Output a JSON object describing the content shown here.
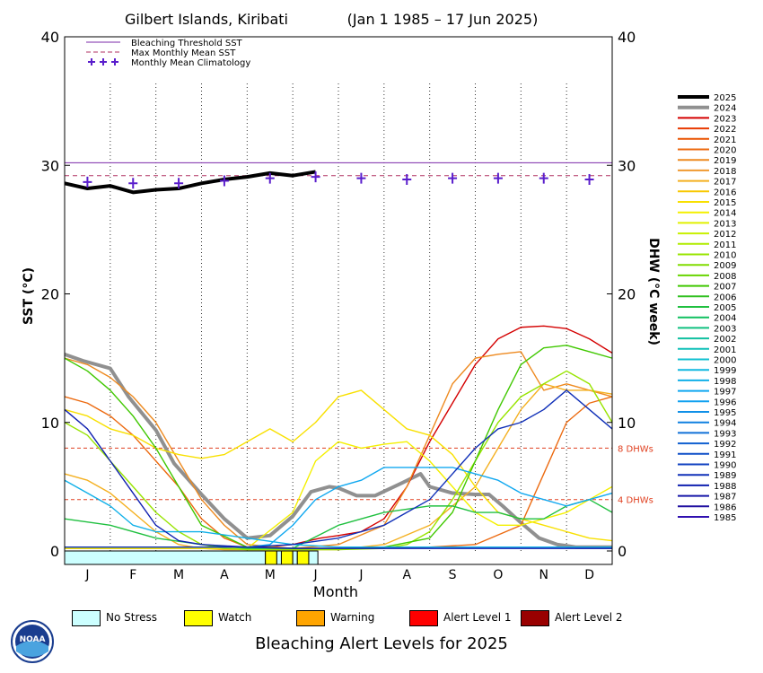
{
  "chart_data": {
    "type": "line",
    "title": "Gilbert Islands, Kiribati",
    "date_range": "(Jan 1 1985 – 17 Jun 2025)",
    "xlabel": "Month",
    "ylabel_left": "SST (°C)",
    "ylabel_right": "DHW (°C week)",
    "ylim": [
      0,
      40
    ],
    "y_ticks": [
      0,
      10,
      20,
      30,
      40
    ],
    "dhw_ylim": [
      0,
      40
    ],
    "months": [
      "J",
      "F",
      "M",
      "A",
      "M",
      "J",
      "J",
      "A",
      "S",
      "O",
      "N",
      "D"
    ],
    "reference_lines": {
      "bleaching_threshold": 30.2,
      "max_monthly_mean": 29.2,
      "dhw_thresholds": [
        {
          "value": 8,
          "label": "8 DHWs"
        },
        {
          "value": 4,
          "label": "4 DHWs"
        }
      ]
    },
    "legend_top": [
      {
        "name": "Bleaching Threshold SST",
        "color": "#7b2aa8"
      },
      {
        "name": "Max Monthly Mean SST",
        "color": "#b03060"
      },
      {
        "name": "Monthly Mean Climatology",
        "color": "#5a1ecc"
      }
    ],
    "climatology": {
      "x": [
        0.5,
        1.5,
        2.5,
        3.5,
        4.5,
        5.5,
        6.5,
        7.5,
        8.5,
        9.5,
        10.5,
        11.5
      ],
      "y": [
        28.7,
        28.6,
        28.6,
        28.8,
        29.0,
        29.1,
        29.0,
        28.9,
        29.0,
        29.0,
        29.0,
        28.9
      ]
    },
    "series": [
      {
        "name": "2025",
        "color": "#000000",
        "sst_x": [
          0.0,
          0.5,
          1.0,
          1.5,
          2.0,
          2.5,
          3.0,
          3.5,
          4.0,
          4.5,
          5.0,
          5.5
        ],
        "sst_y": [
          28.6,
          28.2,
          28.4,
          27.9,
          28.1,
          28.2,
          28.6,
          28.9,
          29.1,
          29.4,
          29.2,
          29.5
        ]
      },
      {
        "name": "2024",
        "color": "#909090",
        "dhw_x": [
          0,
          0.4,
          1.0,
          1.4,
          2.0,
          2.4,
          3.0,
          3.5,
          4.0,
          4.5,
          5.0,
          5.4,
          5.8,
          6.0,
          6.4,
          6.8,
          7.4,
          7.8,
          8.0,
          8.5,
          9.0,
          9.3,
          9.6,
          10.0,
          10.4,
          10.8,
          11.2,
          12.0
        ],
        "dhw_y": [
          15.3,
          14.8,
          14.2,
          12.0,
          9.4,
          6.8,
          4.4,
          2.5,
          1.0,
          1.2,
          2.7,
          4.6,
          5.0,
          4.9,
          4.3,
          4.3,
          5.3,
          6.0,
          5.0,
          4.5,
          4.4,
          4.4,
          3.5,
          2.2,
          1.0,
          0.5,
          0.3,
          0.3
        ]
      },
      {
        "name": "2023",
        "color": "#d40000",
        "dhw_x": [
          0,
          2,
          4,
          5,
          5.6,
          6.0,
          6.5,
          7.0,
          7.5,
          8.0,
          8.5,
          9.0,
          9.5,
          10.0,
          10.5,
          11.0,
          11.5,
          12.0
        ],
        "dhw_y": [
          0.2,
          0.2,
          0.2,
          0.5,
          1.0,
          1.2,
          1.5,
          2.5,
          5.0,
          8.5,
          11.5,
          14.5,
          16.5,
          17.4,
          17.5,
          17.3,
          16.5,
          15.4
        ]
      },
      {
        "name": "2022",
        "color": "#e83a00"
      },
      {
        "name": "2021",
        "color": "#ea5200"
      },
      {
        "name": "2020",
        "color": "#ec6a10",
        "dhw_x": [
          0,
          0.5,
          1.0,
          1.5,
          2.0,
          2.5,
          3.0,
          3.5,
          4.0,
          4.5,
          5.0,
          6.0,
          8.0,
          9.0,
          10.0,
          10.5,
          11.0,
          11.5,
          12.0
        ],
        "dhw_y": [
          12.0,
          11.5,
          10.5,
          9.0,
          7.0,
          5.0,
          2.5,
          1.0,
          0.3,
          0.2,
          0.2,
          0.2,
          0.3,
          0.5,
          2.0,
          6.0,
          10.0,
          11.5,
          12.0
        ]
      },
      {
        "name": "2019",
        "color": "#ee8a20",
        "dhw_x": [
          0,
          0.5,
          1.0,
          1.5,
          2.0,
          2.5,
          3.0,
          3.5,
          4.0,
          5.0,
          6.0,
          7.0,
          7.5,
          8.0,
          8.5,
          9.0,
          9.5,
          10.0,
          10.5,
          11.0,
          11.5,
          12.0
        ],
        "dhw_y": [
          15.0,
          14.5,
          13.5,
          12.0,
          10.0,
          7.0,
          4.0,
          2.0,
          0.5,
          0.2,
          0.5,
          2.0,
          5.0,
          9.0,
          13.0,
          15.0,
          15.3,
          15.5,
          12.5,
          13.0,
          12.5,
          12.0
        ]
      },
      {
        "name": "2018",
        "color": "#f09a30"
      },
      {
        "name": "2017",
        "color": "#f4b020",
        "dhw_x": [
          0,
          0.5,
          1.0,
          1.5,
          2.0,
          2.5,
          3.0,
          3.5,
          4.0,
          5.0,
          6.0,
          7.0,
          8.0,
          9.0,
          9.5,
          10.0,
          10.5,
          11.0,
          11.5,
          12.0
        ],
        "dhw_y": [
          6.0,
          5.5,
          4.5,
          3.0,
          1.5,
          0.5,
          0.2,
          0.1,
          0.1,
          0.1,
          0.1,
          0.5,
          2.0,
          5.0,
          8.0,
          11.0,
          13.0,
          12.5,
          12.5,
          12.2
        ]
      },
      {
        "name": "2016",
        "color": "#f8c800"
      },
      {
        "name": "2015",
        "color": "#f8e000",
        "dhw_x": [
          0,
          0.5,
          1.0,
          1.5,
          2.0,
          2.5,
          3.0,
          3.5,
          4.0,
          4.5,
          5.0,
          5.5,
          6.0,
          6.5,
          7.0,
          7.5,
          8.0,
          8.5,
          9.0,
          9.5,
          10.0,
          10.5,
          11.0,
          11.5,
          12.0
        ],
        "dhw_y": [
          11.0,
          10.5,
          9.5,
          9.0,
          8.0,
          7.5,
          7.2,
          7.5,
          8.5,
          9.5,
          8.5,
          10.0,
          12.0,
          12.5,
          11.0,
          9.5,
          9.0,
          7.5,
          5.0,
          3.0,
          2.5,
          2.0,
          1.5,
          1.0,
          0.8
        ]
      },
      {
        "name": "2014",
        "color": "#f4f000",
        "dhw_x": [
          0,
          1,
          2,
          3,
          4,
          5,
          5.5,
          6,
          6.5,
          7,
          7.5,
          8,
          8.5,
          9,
          9.5,
          10,
          10.5,
          11,
          11.5,
          12
        ],
        "dhw_y": [
          0.2,
          0.2,
          0.2,
          0.2,
          0.2,
          3.0,
          7.0,
          8.5,
          8.0,
          8.3,
          8.5,
          7.0,
          5.0,
          3.0,
          2.0,
          2.0,
          2.5,
          3.0,
          4.0,
          5.0
        ]
      },
      {
        "name": "2013",
        "color": "#e0f000"
      },
      {
        "name": "2012",
        "color": "#c8f000"
      },
      {
        "name": "2011",
        "color": "#b0ec00"
      },
      {
        "name": "2010",
        "color": "#98e400",
        "dhw_x": [
          0,
          0.5,
          1.0,
          1.5,
          2.0,
          2.5,
          3.0,
          3.5,
          4.0,
          5.0,
          6.0,
          7.0,
          7.5,
          8.0,
          8.5,
          9.0,
          9.5,
          10.0,
          10.5,
          11.0,
          11.5,
          12.0
        ],
        "dhw_y": [
          10.0,
          9.0,
          7.0,
          5.0,
          3.0,
          1.5,
          0.5,
          0.2,
          0.1,
          0.1,
          0.1,
          0.2,
          0.5,
          1.5,
          4.0,
          7.0,
          10.0,
          12.0,
          13.0,
          14.0,
          13.0,
          10.0
        ]
      },
      {
        "name": "2009",
        "color": "#80dc00"
      },
      {
        "name": "2008",
        "color": "#68d400"
      },
      {
        "name": "2007",
        "color": "#40c800",
        "dhw_x": [
          0,
          0.5,
          1.0,
          1.5,
          2.0,
          2.5,
          3.0,
          4.0,
          5.0,
          6.0,
          7.0,
          8.0,
          8.5,
          9.0,
          9.5,
          10.0,
          10.5,
          11.0,
          11.5,
          12.0
        ],
        "dhw_y": [
          15.0,
          14.0,
          12.5,
          10.5,
          8.0,
          5.0,
          2.0,
          0.3,
          0.2,
          0.2,
          0.3,
          1.0,
          3.0,
          7.0,
          11.0,
          14.5,
          15.8,
          16.0,
          15.5,
          15.0
        ]
      },
      {
        "name": "2006",
        "color": "#30c020"
      },
      {
        "name": "2005",
        "color": "#20c040",
        "dhw_x": [
          0,
          1,
          2,
          3,
          4,
          5,
          6,
          7,
          8,
          8.5,
          9,
          9.5,
          10,
          10.5,
          11,
          11.5,
          12
        ],
        "dhw_y": [
          2.5,
          2.0,
          1.0,
          0.5,
          0.2,
          0.2,
          2.0,
          3.0,
          3.5,
          3.5,
          3.0,
          3.0,
          2.5,
          2.5,
          3.5,
          4.0,
          3.0
        ]
      },
      {
        "name": "2004",
        "color": "#10c060"
      },
      {
        "name": "2003",
        "color": "#10c080"
      },
      {
        "name": "2002",
        "color": "#10c0a0"
      },
      {
        "name": "2001",
        "color": "#10c0b8"
      },
      {
        "name": "2000",
        "color": "#10c0d0"
      },
      {
        "name": "1999",
        "color": "#10b8e0"
      },
      {
        "name": "1998",
        "color": "#10b0e8",
        "dhw_x": [
          0,
          0.5,
          1.0,
          1.5,
          2.0,
          2.5,
          3.0,
          4.0,
          5.0,
          6.0,
          7.0,
          8.0,
          9.0,
          10.0,
          11.0,
          12.0
        ],
        "dhw_y": [
          5.5,
          4.5,
          3.5,
          2.0,
          1.5,
          1.5,
          1.5,
          1.0,
          0.5,
          0.3,
          0.3,
          0.3,
          0.3,
          0.3,
          0.3,
          0.3
        ]
      },
      {
        "name": "1997",
        "color": "#10a8f0",
        "dhw_x": [
          0,
          1,
          2,
          3,
          4,
          4.5,
          5,
          5.5,
          6,
          6.5,
          7,
          7.5,
          8,
          8.5,
          9,
          9.5,
          10,
          10.5,
          11,
          11.5,
          12
        ],
        "dhw_y": [
          0.3,
          0.3,
          0.3,
          0.3,
          0.3,
          0.5,
          2.0,
          4.0,
          5.0,
          5.5,
          6.5,
          6.5,
          6.5,
          6.5,
          6.0,
          5.5,
          4.5,
          4.0,
          3.5,
          4.0,
          4.5
        ]
      },
      {
        "name": "1996",
        "color": "#10a0f0"
      },
      {
        "name": "1995",
        "color": "#1090e8"
      },
      {
        "name": "1994",
        "color": "#1080e0"
      },
      {
        "name": "1993",
        "color": "#1070d8"
      },
      {
        "name": "1992",
        "color": "#1060d0"
      },
      {
        "name": "1991",
        "color": "#1050c8"
      },
      {
        "name": "1990",
        "color": "#1040c0"
      },
      {
        "name": "1989",
        "color": "#1030b8",
        "dhw_x": [
          0,
          1,
          2,
          3,
          4,
          5,
          6,
          7,
          7.5,
          8,
          8.5,
          9,
          9.5,
          10,
          10.5,
          11,
          11.5,
          12
        ],
        "dhw_y": [
          0.3,
          0.3,
          0.3,
          0.3,
          0.3,
          0.5,
          1.0,
          2.0,
          3.0,
          4.0,
          6.0,
          8.0,
          9.5,
          10.0,
          11.0,
          12.5,
          11.0,
          9.5
        ]
      },
      {
        "name": "1988",
        "color": "#1020b0",
        "dhw_x": [
          0,
          0.5,
          1.0,
          1.5,
          2.0,
          2.5,
          3.0,
          4.0,
          5.0,
          6.0,
          7.0,
          8.0,
          9.0,
          10.0,
          11.0,
          12.0
        ],
        "dhw_y": [
          11.0,
          9.5,
          7.0,
          4.5,
          2.0,
          0.8,
          0.5,
          0.3,
          0.2,
          0.2,
          0.2,
          0.2,
          0.2,
          0.2,
          0.2,
          0.2
        ]
      },
      {
        "name": "1987",
        "color": "#1818a8"
      },
      {
        "name": "1986",
        "color": "#2010a0"
      },
      {
        "name": "1985",
        "color": "#3010b0"
      }
    ],
    "alert_strip": [
      {
        "from": 0,
        "to": 4.4,
        "level": "No Stress"
      },
      {
        "from": 4.4,
        "to": 4.65,
        "level": "Watch"
      },
      {
        "from": 4.65,
        "to": 4.75,
        "level": "No Stress"
      },
      {
        "from": 4.75,
        "to": 5.0,
        "level": "Watch"
      },
      {
        "from": 5.0,
        "to": 5.1,
        "level": "No Stress"
      },
      {
        "from": 5.1,
        "to": 5.35,
        "level": "Watch"
      },
      {
        "from": 5.35,
        "to": 5.55,
        "level": "No Stress"
      }
    ]
  },
  "alert_legend": [
    {
      "label": "No Stress",
      "color": "#ccffff"
    },
    {
      "label": "Watch",
      "color": "#ffff00"
    },
    {
      "label": "Warning",
      "color": "#ffa500"
    },
    {
      "label": "Alert Level 1",
      "color": "#ff0000"
    },
    {
      "label": "Alert Level 2",
      "color": "#990000"
    }
  ],
  "alert_title": "Bleaching Alert Levels for 2025",
  "logo_text": "NOAA"
}
